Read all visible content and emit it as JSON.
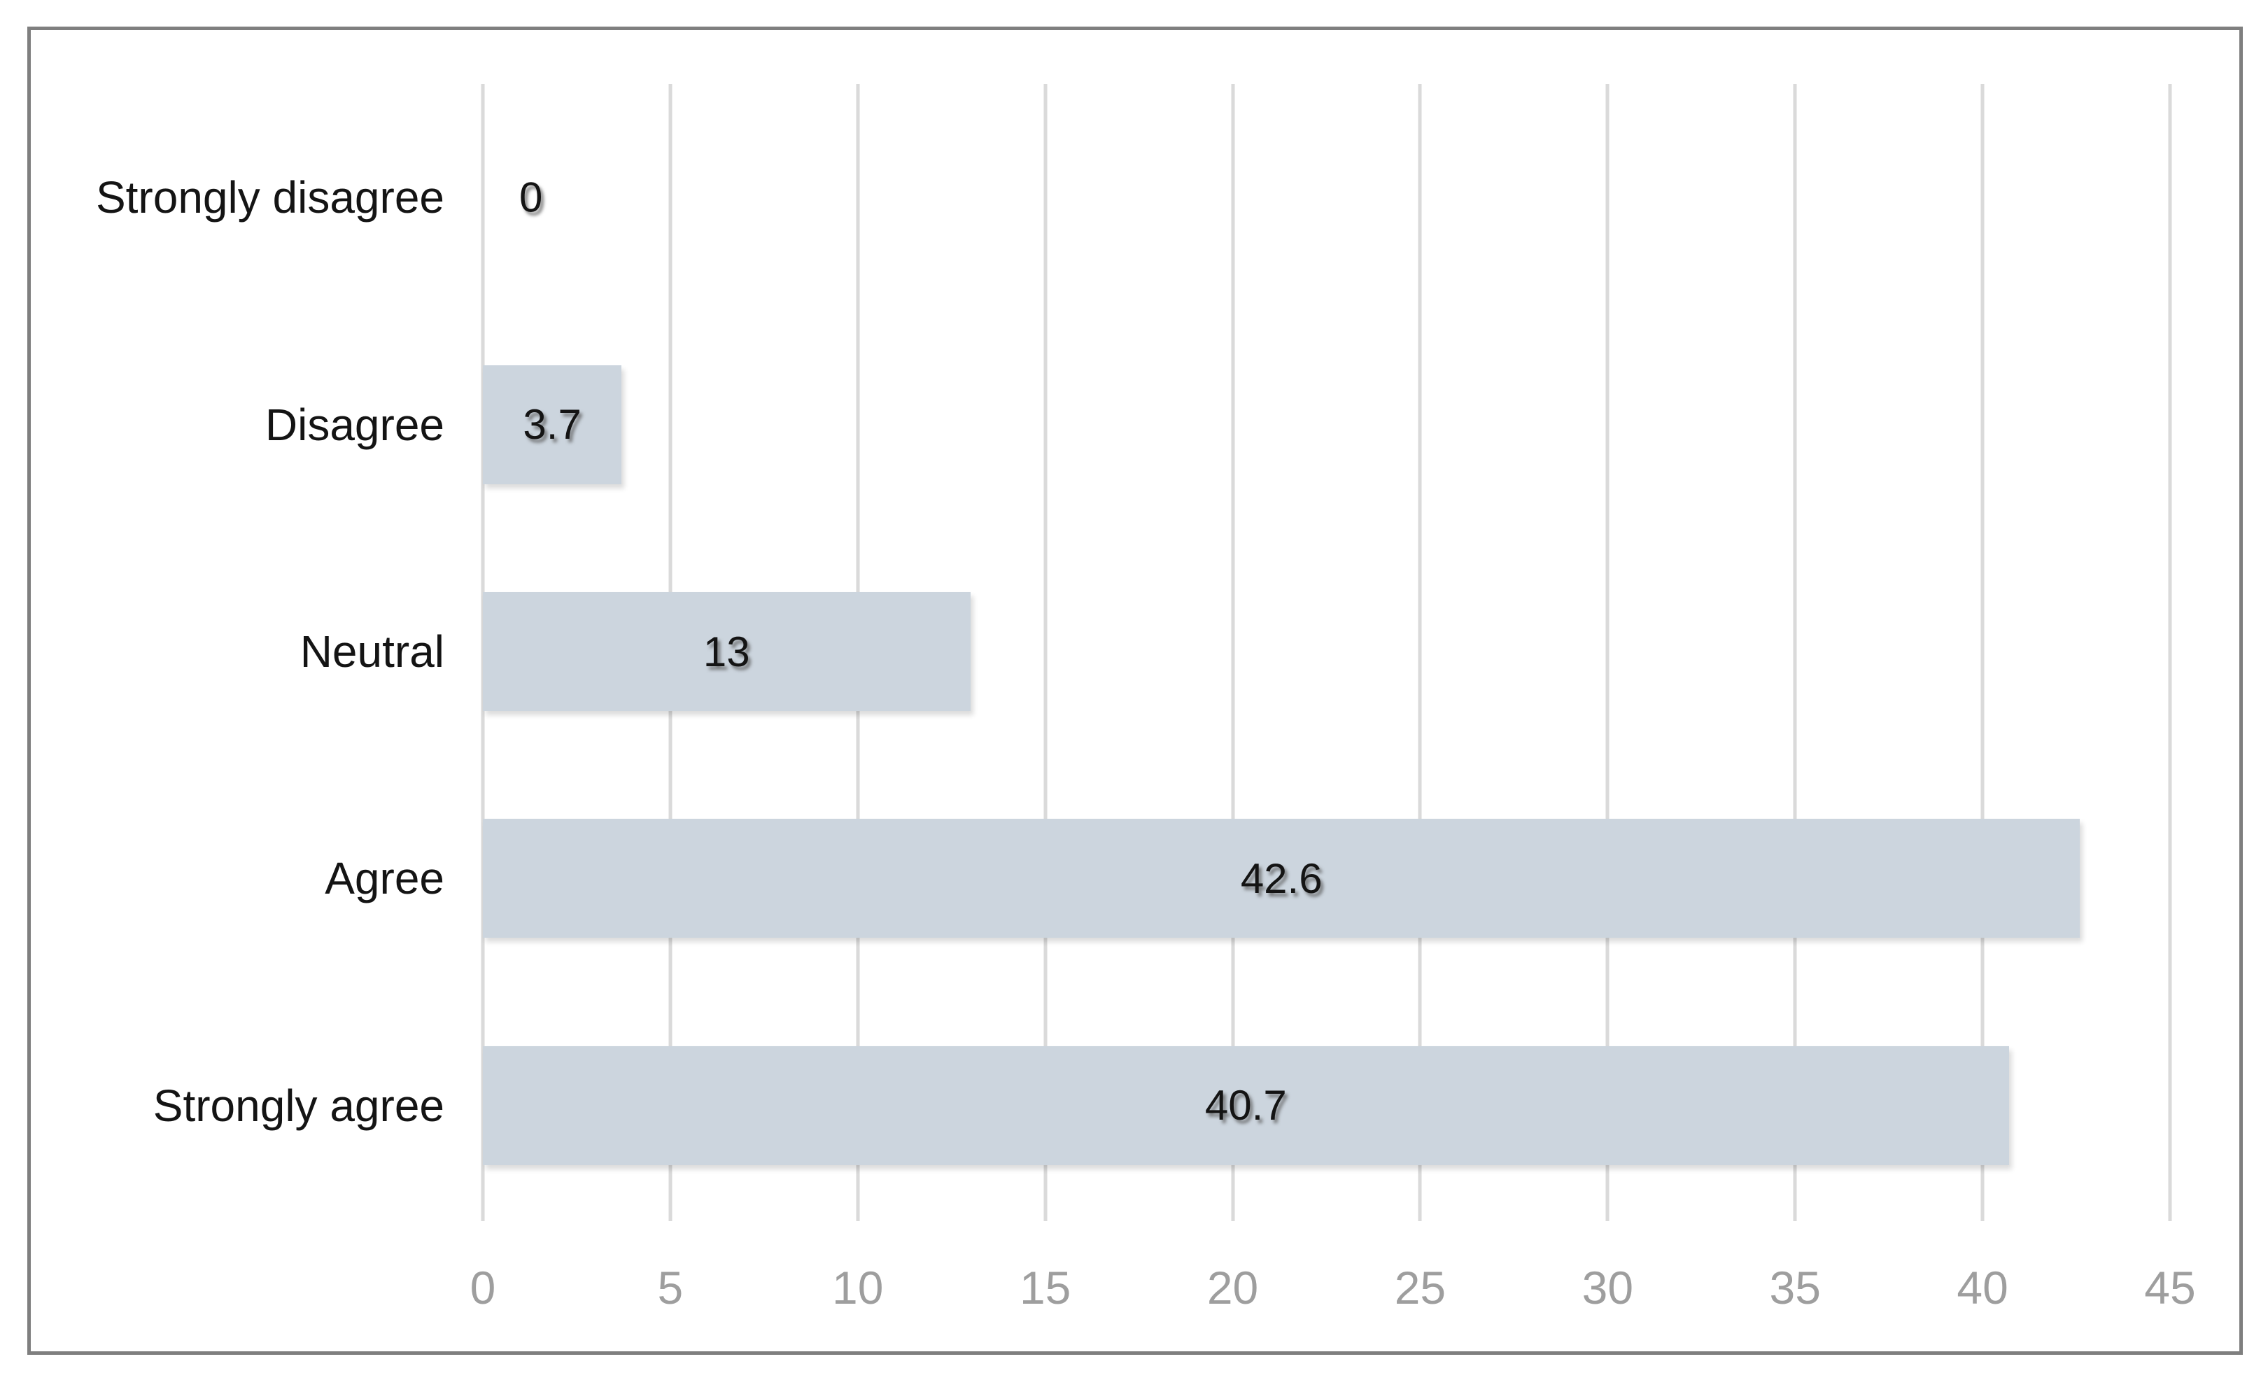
{
  "chart_data": {
    "type": "bar",
    "orientation": "horizontal",
    "title": "",
    "xlabel": "",
    "ylabel": "",
    "categories": [
      "Strongly disagree",
      "Disagree",
      "Neutral",
      "Agree",
      "Strongly agree"
    ],
    "values": [
      0,
      3.7,
      13,
      42.6,
      40.7
    ],
    "value_labels": [
      "0",
      "3.7",
      "13",
      "42.6",
      "40.7"
    ],
    "xlim": [
      0,
      45
    ],
    "xticks": [
      0,
      5,
      10,
      15,
      20,
      25,
      30,
      35,
      40,
      45
    ],
    "grid": "vertical-gridlines-on",
    "legend": "none",
    "colors": {
      "bar_fill": "#ccd5de",
      "gridline": "#dadada",
      "tick_label": "#9e9e9e",
      "category_label": "#141414",
      "data_label": "#141414",
      "frame_border": "#7f7f7f",
      "background": "#ffffff"
    }
  }
}
